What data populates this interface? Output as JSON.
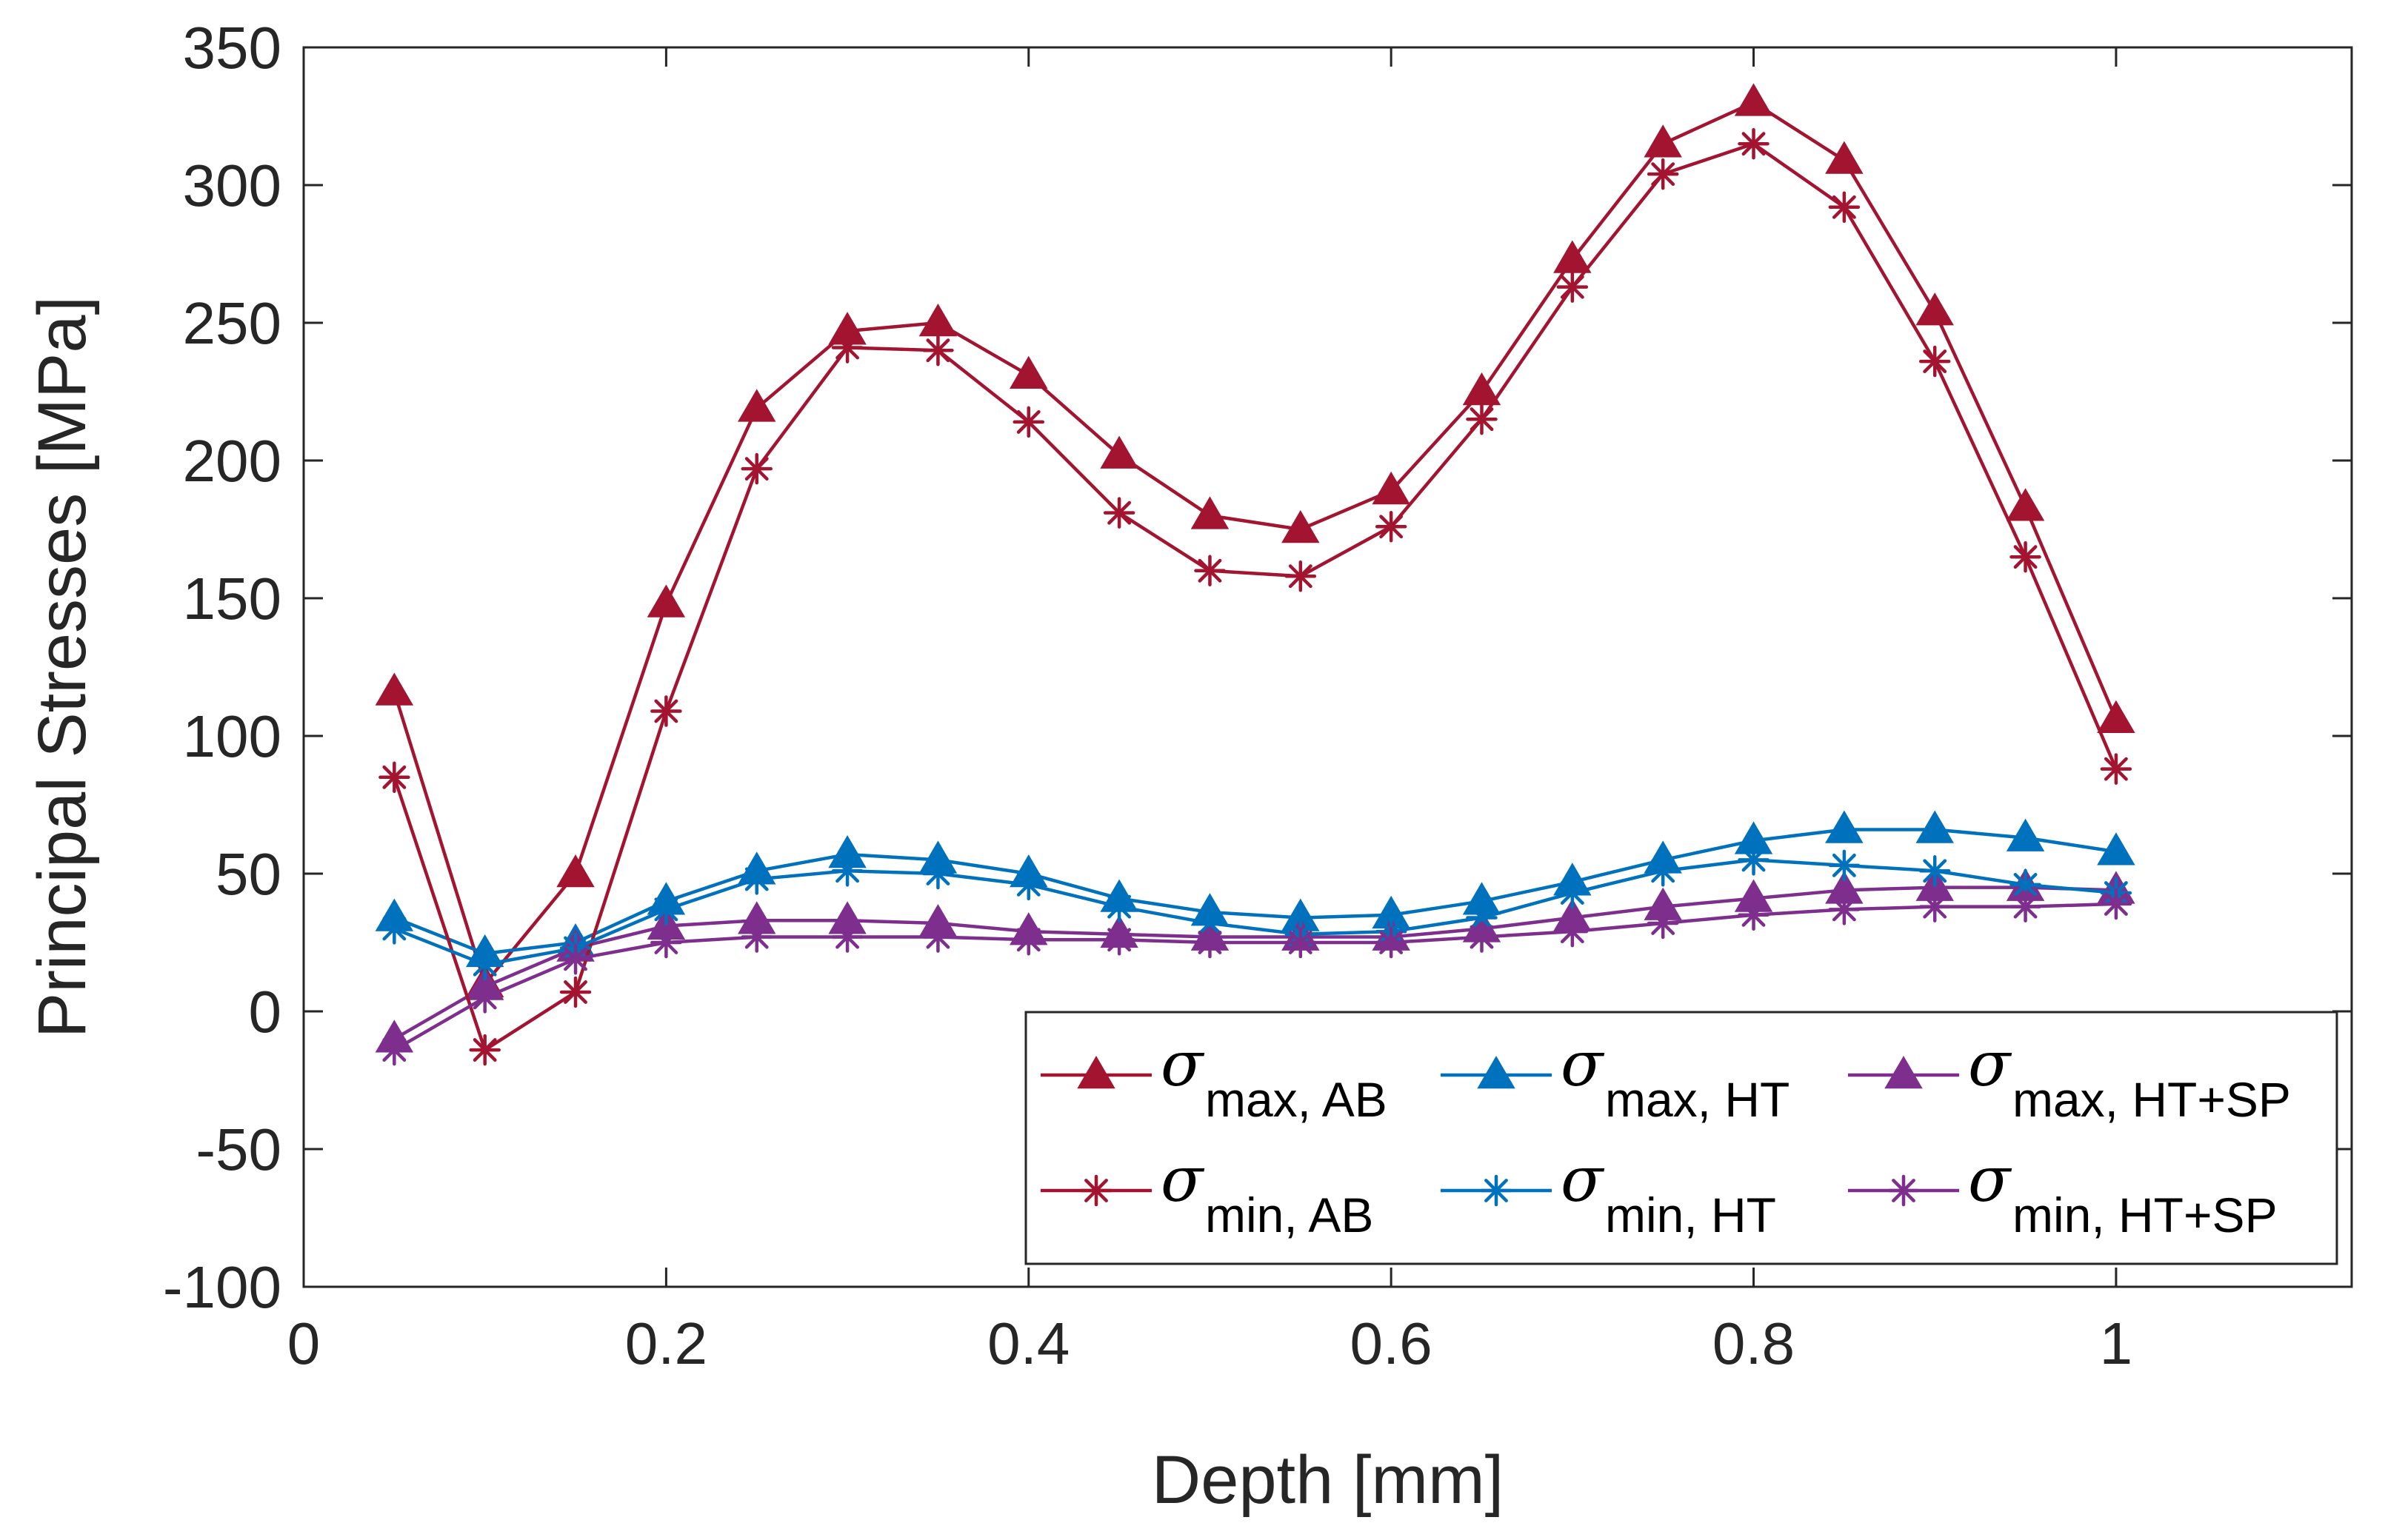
{
  "chart_data": {
    "type": "line",
    "title": "",
    "xlabel": "Depth [mm]",
    "ylabel": "Principal Stresses [MPa]",
    "xlim": [
      0,
      1.13
    ],
    "ylim": [
      -100,
      350
    ],
    "xticks": [
      0,
      0.2,
      0.4,
      0.6,
      0.8,
      1
    ],
    "xtick_labels": [
      "0",
      "0.2",
      "0.4",
      "0.6",
      "0.8",
      "1"
    ],
    "yticks": [
      -100,
      -50,
      0,
      50,
      100,
      150,
      200,
      250,
      300,
      350
    ],
    "ytick_labels": [
      "-100",
      "-50",
      "0",
      "50",
      "100",
      "150",
      "200",
      "250",
      "300",
      "350"
    ],
    "grid": false,
    "legend_position": "bottom-right",
    "x": [
      0.05,
      0.1,
      0.15,
      0.2,
      0.25,
      0.3,
      0.35,
      0.4,
      0.45,
      0.5,
      0.55,
      0.6,
      0.65,
      0.7,
      0.75,
      0.8,
      0.85,
      0.9,
      0.95,
      1.0
    ],
    "series": [
      {
        "name": "σmax, AB",
        "sigma": "σ",
        "subscript": "max, AB",
        "marker": "triangle",
        "color": "#A2142F",
        "values": [
          116,
          10,
          50,
          148,
          219,
          247,
          250,
          231,
          202,
          180,
          175,
          189,
          225,
          273,
          315,
          330,
          309,
          254,
          183,
          106
        ]
      },
      {
        "name": "σmax, HT",
        "sigma": "σ",
        "subscript": "max, HT",
        "marker": "triangle",
        "color": "#0072BD",
        "values": [
          34,
          21,
          25,
          40,
          51,
          57,
          55,
          50,
          41,
          36,
          34,
          35,
          40,
          47,
          55,
          62,
          66,
          66,
          63,
          58
        ]
      },
      {
        "name": "σmax, HT+SP",
        "sigma": "σ",
        "subscript": "max, HT+SP",
        "marker": "triangle",
        "color": "#7E2F8E",
        "values": [
          -10,
          9,
          23,
          31,
          33,
          33,
          32,
          29,
          28,
          27,
          27,
          27,
          30,
          34,
          38,
          41,
          44,
          45,
          45,
          44
        ]
      },
      {
        "name": "σmin, AB",
        "sigma": "σ",
        "subscript": "min, AB",
        "marker": "asterisk",
        "color": "#A2142F",
        "values": [
          85,
          -14,
          7,
          109,
          197,
          241,
          240,
          214,
          181,
          160,
          158,
          176,
          215,
          263,
          304,
          315,
          292,
          236,
          165,
          88
        ]
      },
      {
        "name": "σmin, HT",
        "sigma": "σ",
        "subscript": "min, HT",
        "marker": "asterisk",
        "color": "#0072BD",
        "values": [
          30,
          17,
          23,
          37,
          48,
          51,
          50,
          46,
          38,
          32,
          28,
          29,
          34,
          43,
          51,
          55,
          53,
          51,
          46,
          43
        ]
      },
      {
        "name": "σmin, HT+SP",
        "sigma": "σ",
        "subscript": "min, HT+SP",
        "marker": "asterisk",
        "color": "#7E2F8E",
        "values": [
          -14,
          5,
          19,
          25,
          27,
          27,
          27,
          26,
          26,
          25,
          25,
          25,
          27,
          29,
          32,
          35,
          37,
          38,
          38,
          39
        ]
      }
    ]
  }
}
